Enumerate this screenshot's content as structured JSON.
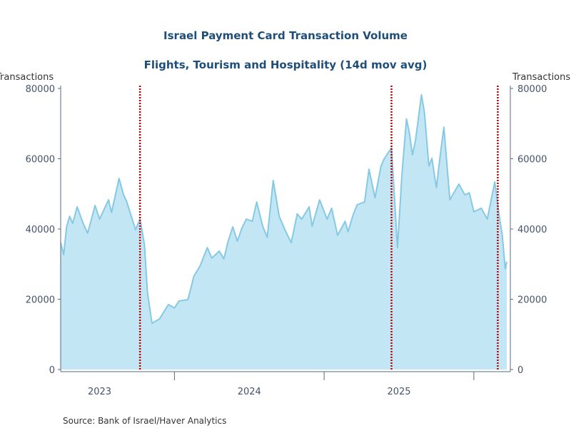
{
  "chart_data": {
    "type": "area",
    "title": "Israel Payment Card Transaction Volume",
    "subtitle": "Flights, Tourism and Hospitality (14d mov avg)",
    "ylabel_left": "Transactions",
    "ylabel_right": "Transactions",
    "ylim": [
      0,
      80000
    ],
    "yticks": [
      "0",
      "20000",
      "40000",
      "60000",
      "80000"
    ],
    "ytick_values": [
      0,
      20000,
      40000,
      60000,
      80000
    ],
    "xlim": [
      2023.24,
      2026.22
    ],
    "x_year_ticks": [
      2024,
      2025,
      2026
    ],
    "x_labels": [
      {
        "label": "2023",
        "x": 2023.5
      },
      {
        "label": "2024",
        "x": 2024.5
      },
      {
        "label": "2025",
        "x": 2025.5
      }
    ],
    "events_vertical_lines": [
      2023.77,
      2025.45,
      2026.16
    ],
    "grid": false,
    "legend": "none",
    "source": "Source:  Bank of Israel/Haver Analytics",
    "colors": {
      "fill": "#c3e6f5",
      "line": "#86c9e3",
      "event": "#c00000",
      "title": "#1f4e79"
    },
    "x": [
      2023.24,
      2023.26,
      2023.28,
      2023.3,
      2023.32,
      2023.35,
      2023.39,
      2023.42,
      2023.47,
      2023.5,
      2023.56,
      2023.58,
      2023.63,
      2023.66,
      2023.68,
      2023.74,
      2023.77,
      2023.8,
      2023.82,
      2023.85,
      2023.9,
      2023.96,
      2024.0,
      2024.03,
      2024.09,
      2024.13,
      2024.17,
      2024.22,
      2024.25,
      2024.3,
      2024.33,
      2024.36,
      2024.39,
      2024.42,
      2024.45,
      2024.48,
      2024.52,
      2024.55,
      2024.59,
      2024.62,
      2024.66,
      2024.7,
      2024.74,
      2024.78,
      2024.82,
      2024.85,
      2024.9,
      2024.92,
      2024.97,
      2025.02,
      2025.05,
      2025.09,
      2025.14,
      2025.16,
      2025.19,
      2025.22,
      2025.27,
      2025.3,
      2025.34,
      2025.38,
      2025.4,
      2025.45,
      2025.47,
      2025.49,
      2025.52,
      2025.55,
      2025.57,
      2025.59,
      2025.61,
      2025.65,
      2025.67,
      2025.7,
      2025.72,
      2025.75,
      2025.78,
      2025.8,
      2025.84,
      2025.9,
      2025.94,
      2025.97,
      2026.0,
      2026.05,
      2026.09,
      2026.14,
      2026.17,
      2026.19,
      2026.21,
      2026.22
    ],
    "values": [
      36100,
      32700,
      40800,
      43600,
      41600,
      46300,
      41600,
      38800,
      46700,
      42800,
      48300,
      44700,
      54400,
      49700,
      47900,
      39800,
      42800,
      35500,
      21900,
      13200,
      14400,
      18500,
      17500,
      19500,
      19900,
      26600,
      29400,
      34700,
      31700,
      33700,
      31500,
      36700,
      40600,
      36500,
      40200,
      42800,
      42200,
      47700,
      40800,
      37600,
      53800,
      43600,
      39600,
      36100,
      44300,
      42800,
      46300,
      40800,
      48300,
      42800,
      45900,
      38200,
      42200,
      39200,
      43600,
      46900,
      47700,
      57000,
      48900,
      57900,
      59900,
      63100,
      48900,
      34700,
      55800,
      71300,
      67200,
      61100,
      65200,
      78200,
      73300,
      57900,
      60100,
      51800,
      62500,
      69000,
      48300,
      52800,
      49700,
      50300,
      44900,
      45900,
      42800,
      53400,
      43600,
      38200,
      28600,
      30700
    ]
  }
}
